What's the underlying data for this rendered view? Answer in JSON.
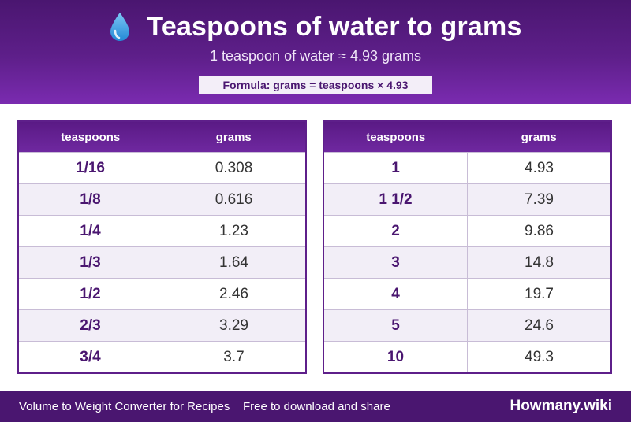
{
  "header": {
    "icon": "water-drop-icon",
    "title": "Teaspoons of water to grams",
    "subtitle": "1 teaspoon of water ≈ 4.93 grams",
    "formula": "Formula: grams = teaspoons × 4.93"
  },
  "tables": [
    {
      "col_teaspoons": "teaspoons",
      "col_grams": "grams",
      "rows": [
        {
          "teaspoons": "1/16",
          "grams": "0.308"
        },
        {
          "teaspoons": "1/8",
          "grams": "0.616"
        },
        {
          "teaspoons": "1/4",
          "grams": "1.23"
        },
        {
          "teaspoons": "1/3",
          "grams": "1.64"
        },
        {
          "teaspoons": "1/2",
          "grams": "2.46"
        },
        {
          "teaspoons": "2/3",
          "grams": "3.29"
        },
        {
          "teaspoons": "3/4",
          "grams": "3.7"
        }
      ]
    },
    {
      "col_teaspoons": "teaspoons",
      "col_grams": "grams",
      "rows": [
        {
          "teaspoons": "1",
          "grams": "4.93"
        },
        {
          "teaspoons": "1 1/2",
          "grams": "7.39"
        },
        {
          "teaspoons": "2",
          "grams": "9.86"
        },
        {
          "teaspoons": "3",
          "grams": "14.8"
        },
        {
          "teaspoons": "4",
          "grams": "19.7"
        },
        {
          "teaspoons": "5",
          "grams": "24.6"
        },
        {
          "teaspoons": "10",
          "grams": "49.3"
        }
      ]
    }
  ],
  "footer": {
    "left_text": "Volume to Weight Converter for Recipes",
    "middle_text": "Free to download and share",
    "brand": "Howmany.wiki"
  },
  "colors": {
    "header_purple": "#5e1f8a",
    "footer_purple": "#4a1670",
    "row_alt": "#f2eef7",
    "drop_blue": "#3aa0e6"
  }
}
